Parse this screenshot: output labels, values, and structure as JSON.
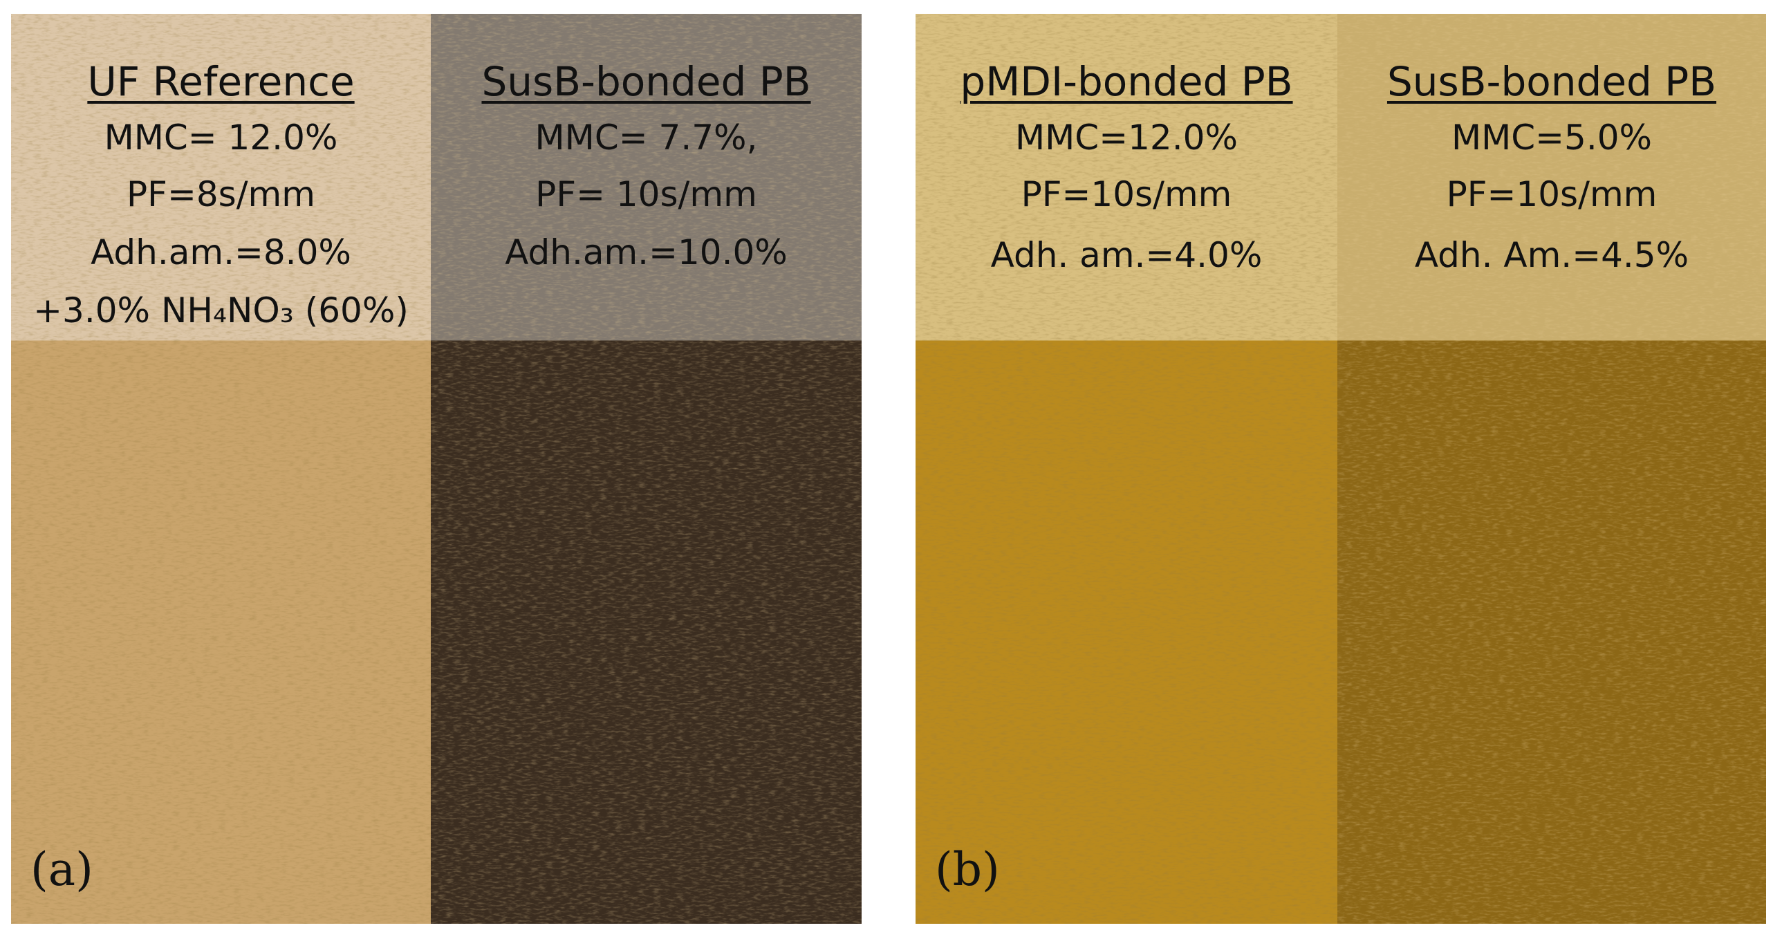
{
  "panels": [
    {
      "label": "(a)",
      "columns": [
        {
          "title": "UF Reference",
          "lines": [
            "MMC= 12.0%",
            "PF=8s/mm",
            "Adh.am.=8.0%",
            "+3.0% NH₄NO₃ (60%)"
          ]
        },
        {
          "title": "SusB-bonded PB",
          "lines": [
            "MMC= 7.7%,",
            "PF= 10s/mm",
            "Adh.am.=10.0%"
          ]
        }
      ]
    },
    {
      "label": "(b)",
      "columns": [
        {
          "title": "pMDI-bonded PB",
          "lines": [
            "MMC=12.0%",
            "PF=10s/mm",
            "Adh. am.=4.0%"
          ]
        },
        {
          "title": "SusB-bonded PB",
          "lines": [
            "MMC=5.0%",
            "PF=10s/mm",
            "Adh. Am.=4.5%"
          ]
        }
      ]
    }
  ]
}
